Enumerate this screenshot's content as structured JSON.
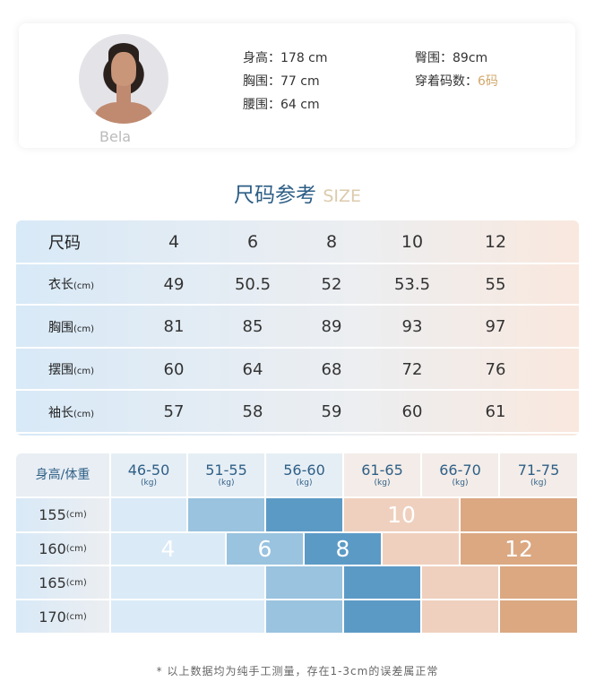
{
  "model": {
    "name": "Bela",
    "height": "身高：178 cm",
    "bust": "胸围：77 cm",
    "waist": "腰围：64 cm",
    "hip": "臀围：89cm",
    "size_label": "穿着码数：",
    "size_value": "6码"
  },
  "title": {
    "main": "尺码参考",
    "sub": "SIZE"
  },
  "size_table": {
    "header": {
      "label": "尺码",
      "sizes": [
        "4",
        "6",
        "8",
        "10",
        "12"
      ]
    },
    "rows": [
      {
        "label": "衣长",
        "unit": "(cm)",
        "values": [
          "49",
          "50.5",
          "52",
          "53.5",
          "55"
        ]
      },
      {
        "label": "胸围",
        "unit": "(cm)",
        "values": [
          "81",
          "85",
          "89",
          "93",
          "97"
        ]
      },
      {
        "label": "摆围",
        "unit": "(cm)",
        "values": [
          "60",
          "64",
          "68",
          "72",
          "76"
        ]
      },
      {
        "label": "袖长",
        "unit": "(cm)",
        "values": [
          "57",
          "58",
          "59",
          "60",
          "61"
        ]
      }
    ]
  },
  "fit_grid": {
    "corner": "身高/体重",
    "weights": [
      "46-50",
      "51-55",
      "56-60",
      "61-65",
      "66-70",
      "71-75"
    ],
    "weight_unit": "(kg)",
    "heights": [
      "155",
      "160",
      "165",
      "170"
    ],
    "height_unit": "(cm)",
    "size_labels": {
      "s4": "4",
      "s6": "6",
      "s8": "8",
      "s10": "10",
      "s12": "12"
    },
    "colors": {
      "size4": "#daeaf7",
      "size6": "#99c3df",
      "size8": "#5c9ac6",
      "size10": "#efd0be",
      "size12": "#dba882"
    }
  },
  "footnote": "* 以上数据均为纯手工测量，存在1-3cm的误差属正常"
}
